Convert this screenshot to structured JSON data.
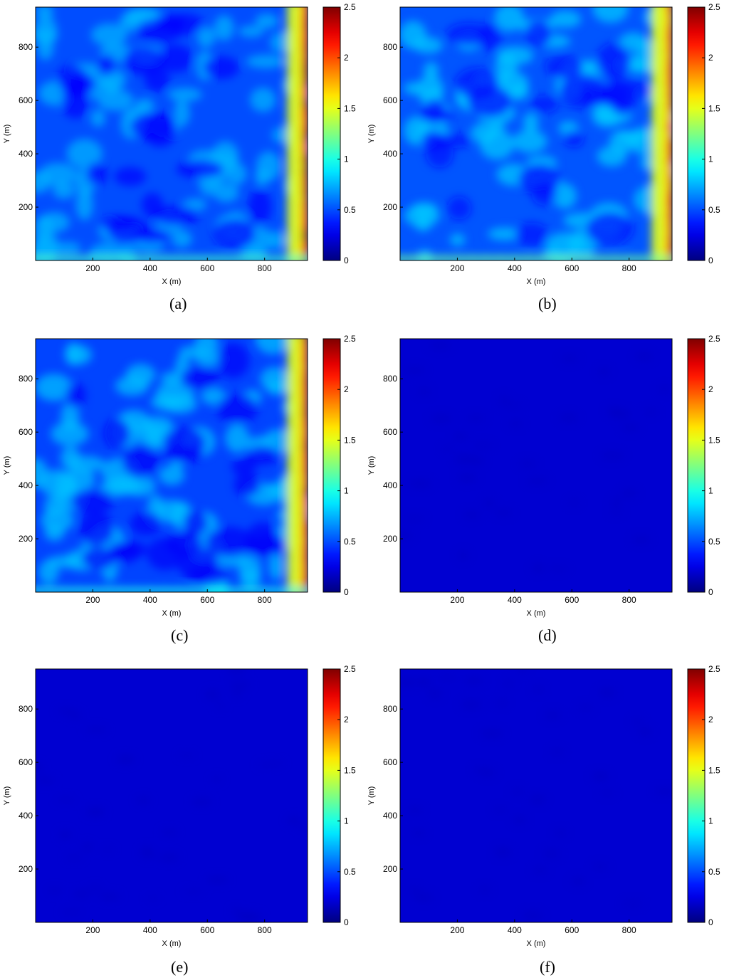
{
  "chart_data": [
    {
      "type": "heatmap",
      "caption_letter": "a",
      "xlabel": "X (m)",
      "ylabel": "Y (m)",
      "xticks": [
        200,
        400,
        600,
        800
      ],
      "yticks": [
        200,
        400,
        600,
        800
      ],
      "xlim": [
        0,
        950
      ],
      "ylim": [
        0,
        950
      ],
      "colorbar": {
        "range": [
          0,
          2.5
        ],
        "ticks": [
          0,
          0.5,
          1,
          1.5,
          2,
          2.5
        ],
        "colormap": "jet"
      },
      "field": {
        "background_value": 0.5,
        "mottle_value": 0.75,
        "right_edge_value": 2.1,
        "bottom_edge_value": 1.1
      }
    },
    {
      "type": "heatmap",
      "caption_letter": "b",
      "xlabel": "X (m)",
      "ylabel": "Y (m)",
      "xticks": [
        200,
        400,
        600,
        800
      ],
      "yticks": [
        200,
        400,
        600,
        800
      ],
      "xlim": [
        0,
        950
      ],
      "ylim": [
        0,
        950
      ],
      "colorbar": {
        "range": [
          0,
          2.5
        ],
        "ticks": [
          0,
          0.5,
          1,
          1.5,
          2,
          2.5
        ],
        "colormap": "jet"
      },
      "field": {
        "background_value": 0.52,
        "mottle_value": 0.8,
        "right_edge_value": 1.8,
        "bottom_edge_value": 1.2
      }
    },
    {
      "type": "heatmap",
      "caption_letter": "c",
      "xlabel": "X (m)",
      "ylabel": "Y (m)",
      "xticks": [
        200,
        400,
        600,
        800
      ],
      "yticks": [
        200,
        400,
        600,
        800
      ],
      "xlim": [
        0,
        950
      ],
      "ylim": [
        0,
        950
      ],
      "colorbar": {
        "range": [
          0,
          2.5
        ],
        "ticks": [
          0,
          0.5,
          1,
          1.5,
          2,
          2.5
        ],
        "colormap": "jet"
      },
      "field": {
        "background_value": 0.48,
        "mottle_value": 0.78,
        "right_edge_value": 2.0,
        "bottom_edge_value": 1.0
      }
    },
    {
      "type": "heatmap",
      "caption_letter": "d",
      "xlabel": "X (m)",
      "ylabel": "Y (m)",
      "xticks": [
        200,
        400,
        600,
        800
      ],
      "yticks": [
        200,
        400,
        600,
        800
      ],
      "xlim": [
        0,
        950
      ],
      "ylim": [
        0,
        950
      ],
      "colorbar": {
        "range": [
          0,
          2.5
        ],
        "ticks": [
          0,
          0.5,
          1,
          1.5,
          2,
          2.5
        ],
        "colormap": "jet"
      },
      "field": {
        "background_value": 0.2,
        "mottle_value": 0.16,
        "right_edge_value": 0.2,
        "bottom_edge_value": 0.2
      }
    },
    {
      "type": "heatmap",
      "caption_letter": "e",
      "xlabel": "X (m)",
      "ylabel": "Y (m)",
      "xticks": [
        200,
        400,
        600,
        800
      ],
      "yticks": [
        200,
        400,
        600,
        800
      ],
      "xlim": [
        0,
        950
      ],
      "ylim": [
        0,
        950
      ],
      "colorbar": {
        "range": [
          0,
          2.5
        ],
        "ticks": [
          0,
          0.5,
          1,
          1.5,
          2,
          2.5
        ],
        "colormap": "jet"
      },
      "field": {
        "background_value": 0.2,
        "mottle_value": 0.16,
        "right_edge_value": 0.2,
        "bottom_edge_value": 0.2
      }
    },
    {
      "type": "heatmap",
      "caption_letter": "f",
      "xlabel": "X (m)",
      "ylabel": "Y (m)",
      "xticks": [
        200,
        400,
        600,
        800
      ],
      "yticks": [
        200,
        400,
        600,
        800
      ],
      "xlim": [
        0,
        950
      ],
      "ylim": [
        0,
        950
      ],
      "colorbar": {
        "range": [
          0,
          2.5
        ],
        "ticks": [
          0,
          0.5,
          1,
          1.5,
          2,
          2.5
        ],
        "colormap": "jet"
      },
      "field": {
        "background_value": 0.2,
        "mottle_value": 0.16,
        "right_edge_value": 0.2,
        "bottom_edge_value": 0.2
      }
    }
  ],
  "captions": [
    "(a)",
    "(b)",
    "(c)",
    "(d)",
    "(e)",
    "(f)"
  ]
}
